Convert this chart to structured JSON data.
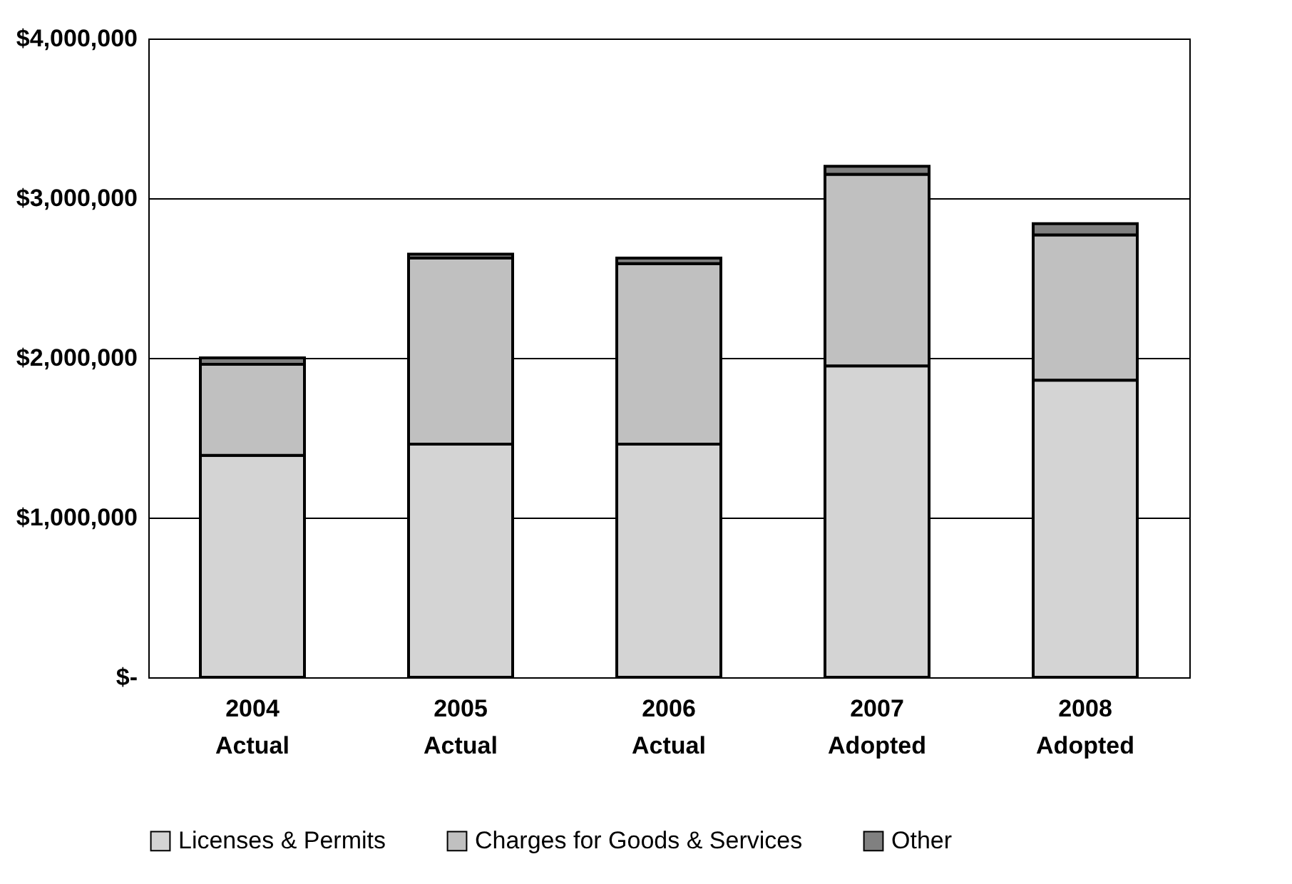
{
  "chart_data": {
    "type": "bar",
    "stacked": true,
    "categories": [
      "2004 Actual",
      "2005 Actual",
      "2006 Actual",
      "2007 Adopted",
      "2008 Adopted"
    ],
    "series": [
      {
        "name": "Licenses & Permits",
        "color": "#d4d4d4",
        "values": [
          1390000,
          1460000,
          1460000,
          1950000,
          1860000
        ]
      },
      {
        "name": "Charges for Goods & Services",
        "color": "#c0c0c0",
        "values": [
          570000,
          1165000,
          1130000,
          1200000,
          910000
        ]
      },
      {
        "name": "Other",
        "color": "#808080",
        "values": [
          40000,
          25000,
          35000,
          50000,
          70000
        ]
      }
    ],
    "ylim": [
      0,
      4000000
    ],
    "yticks": [
      {
        "value": 0,
        "label": "$-"
      },
      {
        "value": 1000000,
        "label": "$1,000,000"
      },
      {
        "value": 2000000,
        "label": "$2,000,000"
      },
      {
        "value": 3000000,
        "label": "$3,000,000"
      },
      {
        "value": 4000000,
        "label": "$4,000,000"
      }
    ],
    "grid": "y",
    "legend": "bottom"
  }
}
